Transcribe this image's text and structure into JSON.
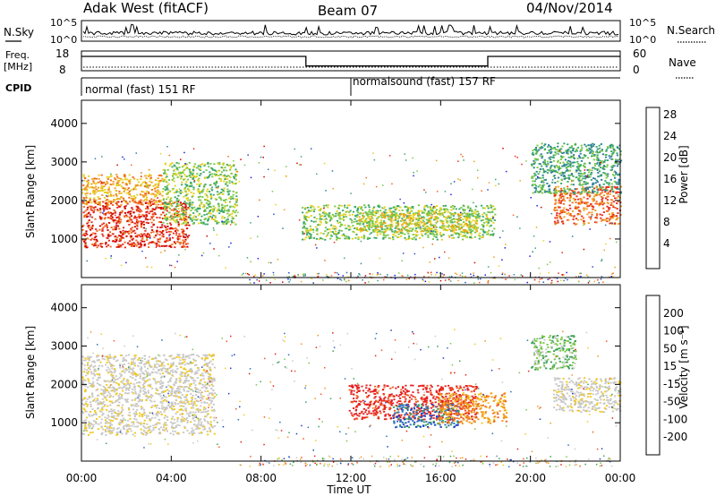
{
  "header": {
    "radar": "Adak West (fitACF)",
    "beam": "Beam 07",
    "date": "04/Nov/2014"
  },
  "top_panels": {
    "nsky": {
      "left_label": "N.Sky",
      "right_label": "N.Search",
      "left_ticks": [
        "10^5",
        "10^0"
      ],
      "right_ticks": [
        "10^5",
        "10^0"
      ]
    },
    "freq": {
      "left_label_1": "Freq.",
      "left_label_2": "[MHz]",
      "right_label": "Nave",
      "left_ticks": [
        "18",
        "8"
      ],
      "right_ticks": [
        "60",
        "0"
      ],
      "freq_steps": [
        {
          "start_h": 0,
          "end_h": 10.0,
          "mhz": 16.4
        },
        {
          "start_h": 10.0,
          "end_h": 18.1,
          "mhz": 10.8
        },
        {
          "start_h": 18.1,
          "end_h": 24,
          "mhz": 16.4
        }
      ]
    },
    "cpid": {
      "label": "CPID",
      "segments": [
        {
          "start_h": 0,
          "end_h": 12.0,
          "text": "normal (fast) 151 RF"
        },
        {
          "start_h": 12.0,
          "end_h": 24,
          "text": "normalsound (fast) 157 RF"
        }
      ]
    }
  },
  "chart_data": [
    {
      "type": "heatmap",
      "title": "",
      "xlabel": "Time UT",
      "ylabel": "Slant Range [km]",
      "xlim": [
        0,
        24
      ],
      "ylim": [
        0,
        4600
      ],
      "x_ticks": [
        "00:00",
        "04:00",
        "08:00",
        "12:00",
        "16:00",
        "20:00",
        "00:00"
      ],
      "y_ticks": [
        "1000",
        "2000",
        "3000",
        "4000"
      ],
      "colorbar": {
        "label": "Power [dB]",
        "ticks": [
          "4",
          "8",
          "12",
          "16",
          "20",
          "24",
          "28"
        ],
        "colors": [
          "#1e1ee6",
          "#2a4cc8",
          "#2f7f9a",
          "#3aa86b",
          "#7ac846",
          "#e6d21e",
          "#f0a01e",
          "#f06a1e",
          "#e62a1e",
          "#d20000"
        ]
      },
      "regions": [
        {
          "x": [
            0.0,
            4.8
          ],
          "y": [
            800,
            2000
          ],
          "value_db": 26
        },
        {
          "x": [
            0.0,
            3.6
          ],
          "y": [
            1900,
            2700
          ],
          "value_db": 20
        },
        {
          "x": [
            3.6,
            6.9
          ],
          "y": [
            1400,
            3000
          ],
          "value_db": 12
        },
        {
          "x": [
            9.8,
            18.4
          ],
          "y": [
            1000,
            1900
          ],
          "value_db": 12
        },
        {
          "x": [
            12.2,
            17.6
          ],
          "y": [
            1200,
            1700
          ],
          "value_db": 18
        },
        {
          "x": [
            21.0,
            24.0
          ],
          "y": [
            1400,
            2400
          ],
          "value_db": 22
        },
        {
          "x": [
            20.0,
            24.0
          ],
          "y": [
            2200,
            3500
          ],
          "value_db": 10
        }
      ]
    },
    {
      "type": "heatmap",
      "title": "",
      "xlabel": "Time UT",
      "ylabel": "Slant Range [km]",
      "xlim": [
        0,
        24
      ],
      "ylim": [
        0,
        4600
      ],
      "x_ticks": [
        "00:00",
        "04:00",
        "08:00",
        "12:00",
        "16:00",
        "20:00",
        "00:00"
      ],
      "y_ticks": [
        "1000",
        "2000",
        "3000",
        "4000"
      ],
      "colorbar": {
        "label": "Velocity [m s⁻¹]",
        "ticks": [
          "200",
          "100",
          "50",
          "15",
          "-15",
          "-50",
          "-100",
          "-200"
        ],
        "colors": [
          "#1e3cc8",
          "#2f6fbe",
          "#3aa05a",
          "#7ac846",
          "#c8c8c8",
          "#c8c8c8",
          "#f0c81e",
          "#f0961e",
          "#f05a1e",
          "#e61e1e"
        ]
      },
      "regions": [
        {
          "x": [
            0.0,
            5.9
          ],
          "y": [
            700,
            2800
          ],
          "value_ms": 0
        },
        {
          "x": [
            11.9,
            17.6
          ],
          "y": [
            1100,
            2000
          ],
          "value_ms": -180
        },
        {
          "x": [
            13.8,
            16.8
          ],
          "y": [
            900,
            1500
          ],
          "value_ms": 120
        },
        {
          "x": [
            15.8,
            18.9
          ],
          "y": [
            1000,
            1800
          ],
          "value_ms": -40
        },
        {
          "x": [
            21.0,
            24.0
          ],
          "y": [
            1300,
            2200
          ],
          "value_ms": 0
        },
        {
          "x": [
            20.0,
            22.0
          ],
          "y": [
            2400,
            3300
          ],
          "value_ms": 40
        }
      ]
    }
  ]
}
